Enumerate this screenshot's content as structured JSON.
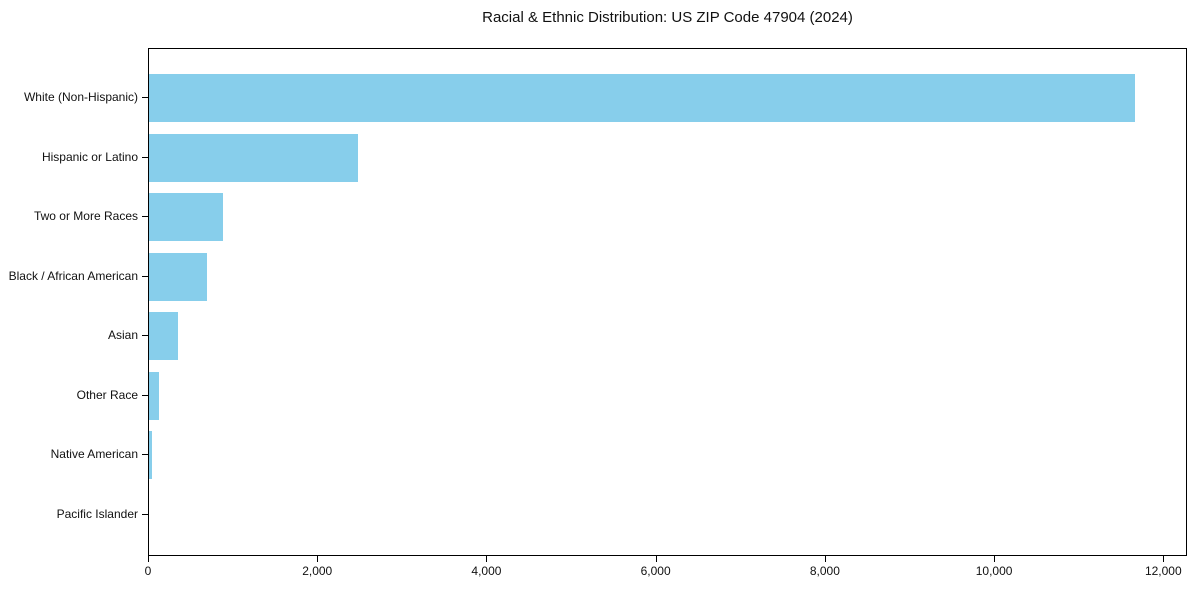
{
  "title": "Racial & Ethnic Distribution: US ZIP Code 47904 (2024)",
  "colors": {
    "background": "#ffffff",
    "bar": "#87CEEB",
    "axis": "#000000",
    "text": "#111111"
  },
  "chart_data": {
    "type": "bar",
    "orientation": "horizontal",
    "title": "Racial & Ethnic Distribution: US ZIP Code 47904 (2024)",
    "categories": [
      "White (Non-Hispanic)",
      "Hispanic or Latino",
      "Two or More Races",
      "Black / African American",
      "Asian",
      "Other Race",
      "Native American",
      "Pacific Islander"
    ],
    "values": [
      11680,
      2480,
      880,
      690,
      340,
      120,
      35,
      0
    ],
    "xlabel": "",
    "ylabel": "",
    "xlim": [
      0,
      12280
    ],
    "xticks": [
      0,
      2000,
      4000,
      6000,
      8000,
      10000,
      12000
    ],
    "xtick_labels": [
      "0",
      "2,000",
      "4,000",
      "6,000",
      "8,000",
      "10,000",
      "12,000"
    ],
    "grid": false,
    "legend": null,
    "bar_color": "#87CEEB"
  }
}
